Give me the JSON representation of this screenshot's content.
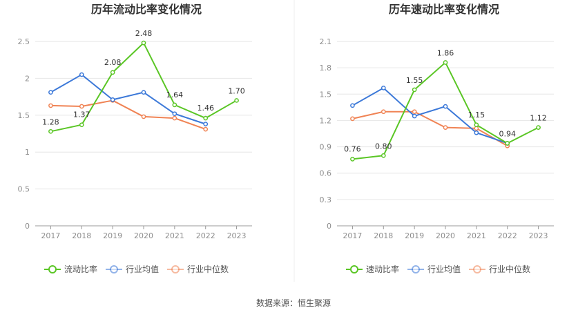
{
  "chart_data": [
    {
      "type": "line",
      "title": "历年流动比率变化情况",
      "categories": [
        "2017",
        "2018",
        "2019",
        "2020",
        "2021",
        "2022",
        "2023"
      ],
      "ylim": [
        0,
        2.5
      ],
      "yticks": [
        "0",
        "0.5",
        "1",
        "1.5",
        "2",
        "2.5"
      ],
      "series": [
        {
          "name": "流动比率",
          "color": "#5ac625",
          "values": [
            1.28,
            1.37,
            2.08,
            2.48,
            1.64,
            1.46,
            1.7
          ],
          "labels": [
            "1.28",
            "1.37",
            "2.08",
            "2.48",
            "1.64",
            "1.46",
            "1.70"
          ]
        },
        {
          "name": "行业均值",
          "color": "#3b78d8",
          "values": [
            1.81,
            2.05,
            1.71,
            1.81,
            1.52,
            1.38,
            null
          ]
        },
        {
          "name": "行业中位数",
          "color": "#f08354",
          "values": [
            1.63,
            1.62,
            1.7,
            1.48,
            1.46,
            1.31,
            null
          ]
        }
      ],
      "grid": true,
      "legend": "bottom"
    },
    {
      "type": "line",
      "title": "历年速动比率变化情况",
      "categories": [
        "2017",
        "2018",
        "2019",
        "2020",
        "2021",
        "2022",
        "2023"
      ],
      "ylim": [
        0,
        2.1
      ],
      "yticks": [
        "0",
        "0.3",
        "0.6",
        "0.9",
        "1.2",
        "1.5",
        "1.8",
        "2.1"
      ],
      "series": [
        {
          "name": "速动比率",
          "color": "#5ac625",
          "values": [
            0.76,
            0.8,
            1.55,
            1.86,
            1.15,
            0.94,
            1.12
          ],
          "labels": [
            "0.76",
            "0.80",
            "1.55",
            "1.86",
            "1.15",
            "0.94",
            "1.12"
          ]
        },
        {
          "name": "行业均值",
          "color": "#3b78d8",
          "values": [
            1.37,
            1.57,
            1.25,
            1.36,
            1.06,
            0.94,
            null
          ]
        },
        {
          "name": "行业中位数",
          "color": "#f08354",
          "values": [
            1.22,
            1.3,
            1.3,
            1.12,
            1.11,
            0.91,
            null
          ]
        }
      ],
      "grid": true,
      "legend": "bottom"
    }
  ],
  "footer": {
    "source": "数据来源：恒生聚源"
  }
}
